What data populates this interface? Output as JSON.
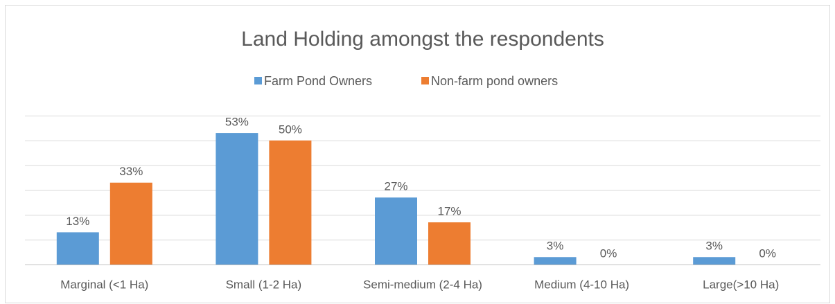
{
  "chart_data": {
    "type": "bar",
    "title": "Land Holding amongst the respondents",
    "categories": [
      "Marginal (<1 Ha)",
      "Small (1-2 Ha)",
      "Semi-medium (2-4 Ha)",
      "Medium (4-10 Ha)",
      "Large(>10 Ha)"
    ],
    "series": [
      {
        "name": "Farm Pond Owners",
        "color": "#5b9bd5",
        "values": [
          13,
          53,
          27,
          3,
          3
        ],
        "value_labels": [
          "13%",
          "53%",
          "27%",
          "3%",
          "3%"
        ]
      },
      {
        "name": "Non-farm pond owners",
        "color": "#ed7d31",
        "values": [
          33,
          50,
          17,
          0,
          0
        ],
        "value_labels": [
          "33%",
          "50%",
          "17%",
          "0%",
          "0%"
        ]
      }
    ],
    "ylim": [
      0,
      60
    ],
    "yticks": [
      0,
      10,
      20,
      30,
      40,
      50,
      60
    ],
    "grid": true,
    "legend": "top"
  }
}
